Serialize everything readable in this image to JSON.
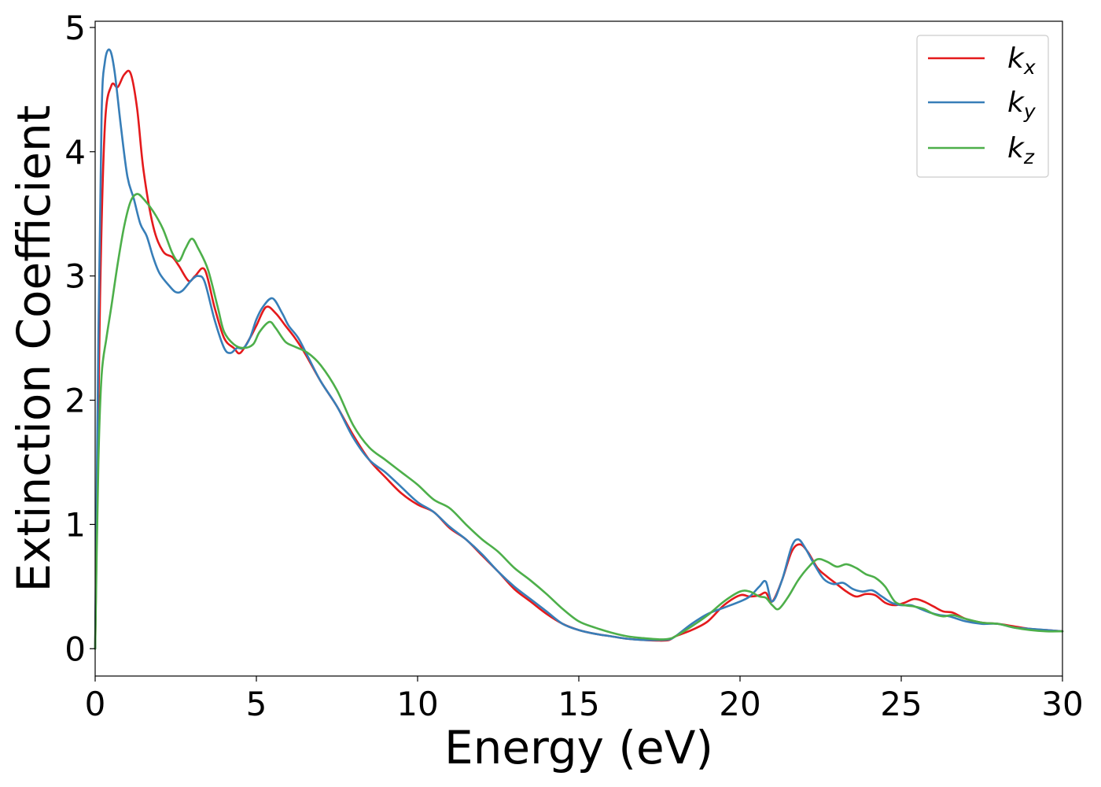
{
  "chart_data": {
    "type": "line",
    "title": "",
    "xlabel": "Energy (eV)",
    "ylabel": "Extinction Coefficient",
    "xlim": [
      0,
      30
    ],
    "ylim": [
      -0.22,
      5.05
    ],
    "xticks": [
      0,
      5,
      10,
      15,
      20,
      25,
      30
    ],
    "yticks": [
      0,
      1,
      2,
      3,
      4,
      5
    ],
    "xtick_labels": [
      "0",
      "5",
      "10",
      "15",
      "20",
      "25",
      "30"
    ],
    "ytick_labels": [
      "0",
      "1",
      "2",
      "3",
      "4",
      "5"
    ],
    "grid": false,
    "legend_position": "top-right",
    "series": [
      {
        "name": "k_x",
        "label_base": "k",
        "label_sub": "x",
        "color": "#e41a1c",
        "x": [
          0,
          0.15,
          0.3,
          0.5,
          0.7,
          0.9,
          1.1,
          1.3,
          1.5,
          1.8,
          2.1,
          2.4,
          2.6,
          2.9,
          3.1,
          3.4,
          3.7,
          4.0,
          4.3,
          4.5,
          4.8,
          5.0,
          5.3,
          5.6,
          5.9,
          6.2,
          6.5,
          7.0,
          7.5,
          8.0,
          8.5,
          9.0,
          9.5,
          10.0,
          10.5,
          11.0,
          11.5,
          12.0,
          12.5,
          13.0,
          13.5,
          14.0,
          14.5,
          15.0,
          15.5,
          16.0,
          16.5,
          17.0,
          17.5,
          17.8,
          18.0,
          18.5,
          19.0,
          19.5,
          20.0,
          20.3,
          20.6,
          20.8,
          21.0,
          21.3,
          21.6,
          21.85,
          22.1,
          22.4,
          22.7,
          23.0,
          23.3,
          23.6,
          23.9,
          24.2,
          24.5,
          24.8,
          25.1,
          25.4,
          25.7,
          26.0,
          26.3,
          26.6,
          27.0,
          27.5,
          28.0,
          28.5,
          29.0,
          29.5,
          30.0
        ],
        "values": [
          0,
          2.8,
          4.2,
          4.53,
          4.52,
          4.62,
          4.63,
          4.35,
          3.85,
          3.4,
          3.2,
          3.15,
          3.08,
          2.96,
          3.0,
          3.05,
          2.75,
          2.5,
          2.42,
          2.38,
          2.5,
          2.6,
          2.75,
          2.7,
          2.6,
          2.5,
          2.38,
          2.15,
          1.95,
          1.72,
          1.52,
          1.38,
          1.25,
          1.16,
          1.1,
          0.97,
          0.88,
          0.75,
          0.62,
          0.48,
          0.38,
          0.28,
          0.2,
          0.15,
          0.12,
          0.1,
          0.08,
          0.07,
          0.065,
          0.07,
          0.1,
          0.15,
          0.22,
          0.35,
          0.43,
          0.42,
          0.43,
          0.45,
          0.38,
          0.55,
          0.78,
          0.84,
          0.78,
          0.65,
          0.58,
          0.52,
          0.46,
          0.42,
          0.44,
          0.43,
          0.37,
          0.35,
          0.37,
          0.4,
          0.38,
          0.34,
          0.3,
          0.29,
          0.24,
          0.21,
          0.2,
          0.18,
          0.16,
          0.15,
          0.14
        ]
      },
      {
        "name": "k_y",
        "label_base": "k",
        "label_sub": "y",
        "color": "#377eb8",
        "x": [
          0,
          0.1,
          0.2,
          0.3,
          0.45,
          0.6,
          0.8,
          1.0,
          1.2,
          1.4,
          1.6,
          1.8,
          2.0,
          2.3,
          2.5,
          2.7,
          3.0,
          3.2,
          3.4,
          3.7,
          4.0,
          4.2,
          4.4,
          4.6,
          4.8,
          5.0,
          5.2,
          5.5,
          5.8,
          6.0,
          6.3,
          6.6,
          7.0,
          7.5,
          8.0,
          8.5,
          9.0,
          9.5,
          10.0,
          10.5,
          11.0,
          11.5,
          12.0,
          12.5,
          13.0,
          13.5,
          14.0,
          14.5,
          15.0,
          15.5,
          16.0,
          16.5,
          17.0,
          17.5,
          17.8,
          18.0,
          18.5,
          19.0,
          19.5,
          20.0,
          20.3,
          20.6,
          20.8,
          21.0,
          21.3,
          21.6,
          21.8,
          22.0,
          22.3,
          22.6,
          22.9,
          23.2,
          23.5,
          23.8,
          24.1,
          24.4,
          24.7,
          25.0,
          25.3,
          25.6,
          25.9,
          26.2,
          26.5,
          27.0,
          27.5,
          28.0,
          28.5,
          29.0,
          29.5,
          30.0
        ],
        "values": [
          0,
          2.5,
          4.3,
          4.72,
          4.82,
          4.65,
          4.2,
          3.8,
          3.62,
          3.42,
          3.32,
          3.15,
          3.02,
          2.92,
          2.87,
          2.88,
          2.97,
          3.0,
          2.95,
          2.65,
          2.42,
          2.38,
          2.42,
          2.42,
          2.5,
          2.65,
          2.75,
          2.82,
          2.7,
          2.6,
          2.5,
          2.35,
          2.15,
          1.95,
          1.7,
          1.52,
          1.42,
          1.3,
          1.18,
          1.1,
          0.98,
          0.88,
          0.76,
          0.62,
          0.5,
          0.4,
          0.3,
          0.2,
          0.15,
          0.12,
          0.1,
          0.08,
          0.07,
          0.07,
          0.075,
          0.1,
          0.2,
          0.28,
          0.33,
          0.38,
          0.42,
          0.5,
          0.54,
          0.38,
          0.55,
          0.82,
          0.88,
          0.82,
          0.68,
          0.56,
          0.52,
          0.53,
          0.48,
          0.46,
          0.47,
          0.42,
          0.37,
          0.35,
          0.35,
          0.32,
          0.29,
          0.27,
          0.26,
          0.22,
          0.2,
          0.2,
          0.17,
          0.16,
          0.15,
          0.14
        ]
      },
      {
        "name": "k_z",
        "label_base": "k",
        "label_sub": "z",
        "color": "#4daf4a",
        "x": [
          0,
          0.1,
          0.2,
          0.35,
          0.5,
          0.7,
          0.9,
          1.1,
          1.3,
          1.5,
          1.8,
          2.1,
          2.4,
          2.6,
          2.8,
          3.0,
          3.2,
          3.5,
          3.8,
          4.0,
          4.3,
          4.6,
          4.9,
          5.1,
          5.4,
          5.6,
          5.9,
          6.2,
          6.6,
          7.0,
          7.5,
          8.0,
          8.5,
          9.0,
          9.5,
          10.0,
          10.5,
          11.0,
          11.5,
          12.0,
          12.5,
          13.0,
          13.5,
          14.0,
          14.5,
          15.0,
          15.5,
          16.0,
          16.5,
          17.0,
          17.5,
          17.8,
          18.0,
          18.5,
          19.0,
          19.5,
          20.0,
          20.3,
          20.6,
          20.8,
          21.0,
          21.2,
          21.5,
          21.8,
          22.1,
          22.4,
          22.7,
          23.0,
          23.3,
          23.6,
          23.9,
          24.2,
          24.5,
          24.8,
          25.1,
          25.4,
          25.7,
          26.0,
          26.3,
          26.6,
          27.0,
          27.5,
          28.0,
          28.5,
          29.0,
          29.5,
          30.0
        ],
        "values": [
          0,
          1.5,
          2.2,
          2.5,
          2.75,
          3.1,
          3.4,
          3.6,
          3.66,
          3.62,
          3.52,
          3.38,
          3.18,
          3.12,
          3.22,
          3.3,
          3.22,
          3.05,
          2.75,
          2.55,
          2.45,
          2.42,
          2.45,
          2.55,
          2.63,
          2.58,
          2.47,
          2.43,
          2.38,
          2.28,
          2.08,
          1.8,
          1.62,
          1.52,
          1.42,
          1.32,
          1.2,
          1.13,
          1.0,
          0.88,
          0.78,
          0.65,
          0.55,
          0.44,
          0.32,
          0.22,
          0.17,
          0.13,
          0.1,
          0.085,
          0.075,
          0.08,
          0.1,
          0.18,
          0.27,
          0.38,
          0.46,
          0.46,
          0.42,
          0.41,
          0.35,
          0.32,
          0.42,
          0.55,
          0.65,
          0.72,
          0.7,
          0.66,
          0.68,
          0.65,
          0.6,
          0.57,
          0.5,
          0.38,
          0.35,
          0.34,
          0.32,
          0.28,
          0.26,
          0.27,
          0.24,
          0.21,
          0.2,
          0.17,
          0.15,
          0.14,
          0.14
        ]
      }
    ]
  }
}
